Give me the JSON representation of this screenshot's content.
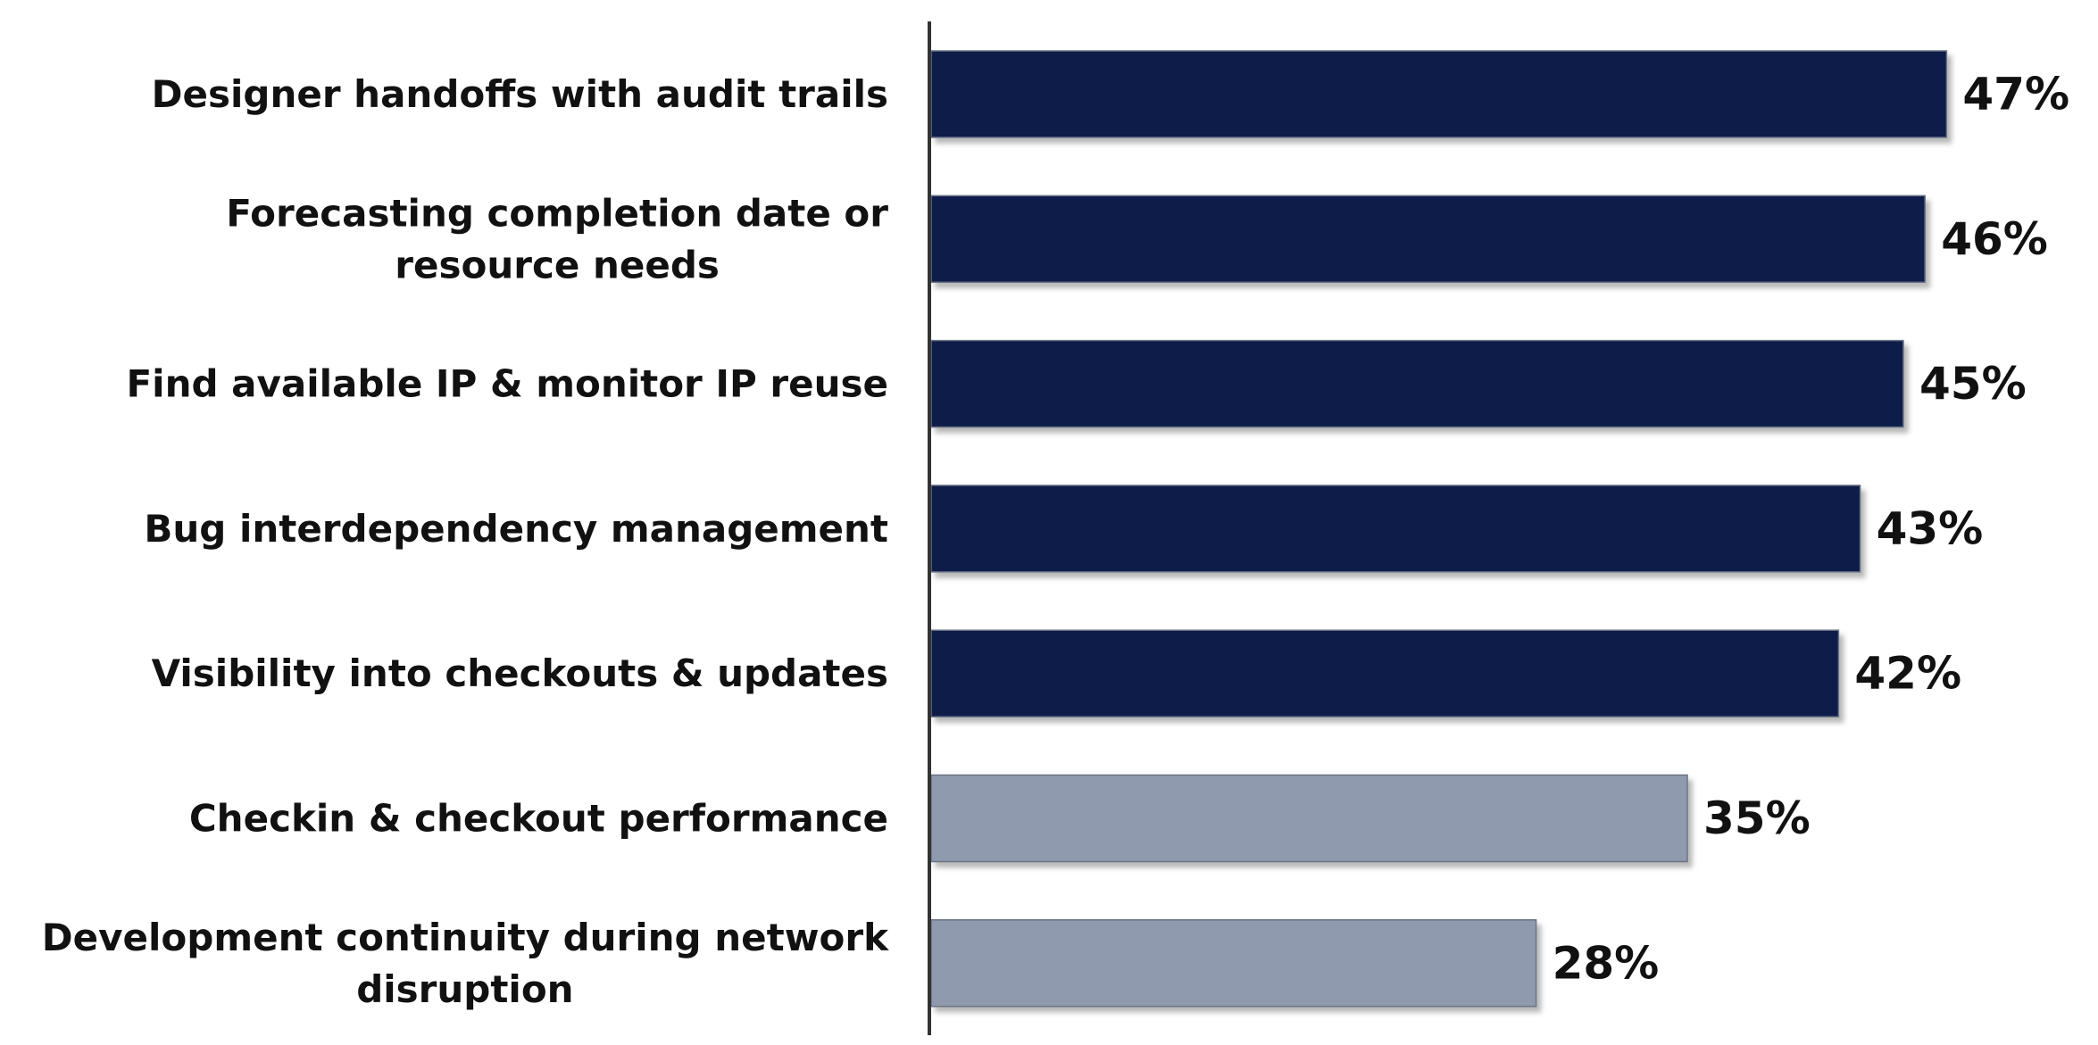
{
  "chart_data": {
    "type": "bar",
    "orientation": "horizontal",
    "title": "",
    "xlabel": "",
    "ylabel": "",
    "xlim": [
      0,
      50
    ],
    "grid": false,
    "legend": "none",
    "categories": [
      "Designer handoffs with audit trails",
      "Forecasting completion date or resource needs",
      "Find available IP & monitor IP reuse",
      "Bug interdependency management",
      "Visibility into checkouts & updates",
      "Checkin & checkout performance",
      "Development continuity during network disruption"
    ],
    "values": [
      47,
      46,
      45,
      43,
      42,
      35,
      28
    ],
    "value_labels": [
      "47%",
      "46%",
      "45%",
      "43%",
      "42%",
      "35%",
      "28%"
    ],
    "bar_colors": [
      "#0a1f4a",
      "#0a1f4a",
      "#0a1f4a",
      "#0a1f4a",
      "#0a1f4a",
      "#8f9aae",
      "#8f9aae"
    ]
  }
}
